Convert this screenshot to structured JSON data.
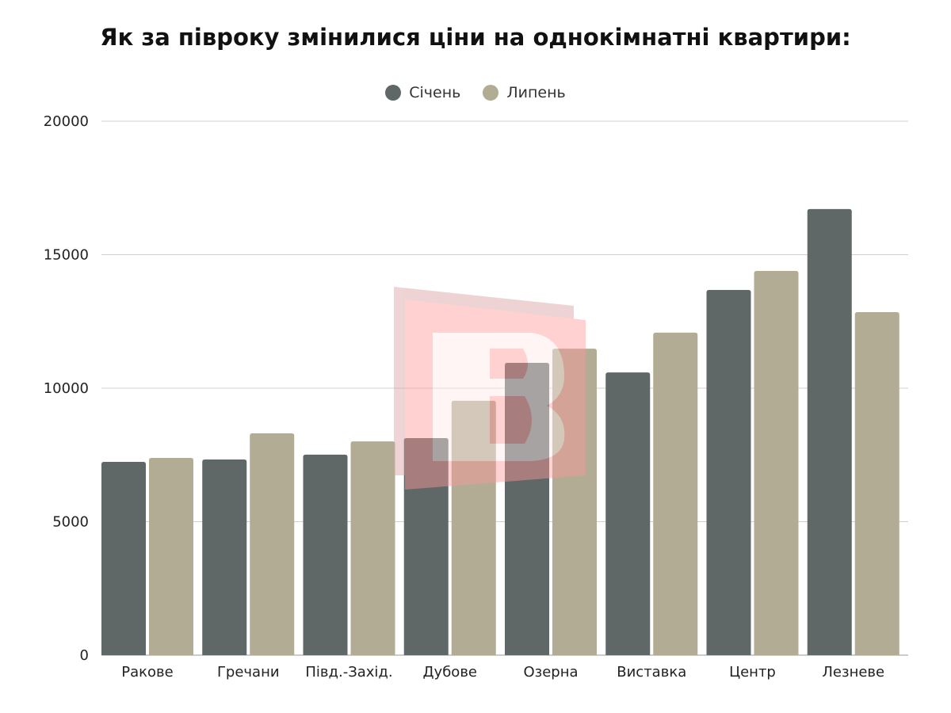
{
  "chart_data": {
    "type": "bar",
    "title": "Як за півроку змінилися ціни на однокімнатні квартири:",
    "xlabel": "",
    "ylabel": "",
    "ylim": [
      0,
      20000
    ],
    "yticks": [
      0,
      5000,
      10000,
      15000,
      20000
    ],
    "grid": true,
    "legend_position": "top-center",
    "categories": [
      "Ракове",
      "Гречани",
      "Півд.-Захід.",
      "Дубове",
      "Озерна",
      "Виставка",
      "Центр",
      "Лезневе"
    ],
    "series": [
      {
        "name": "Січень",
        "color": "#5f6866",
        "values": [
          7240,
          7330,
          7510,
          8130,
          10950,
          10590,
          13680,
          16710
        ]
      },
      {
        "name": "Липень",
        "color": "#b2ac95",
        "values": [
          7390,
          8310,
          8010,
          9530,
          11480,
          12080,
          14390,
          12850
        ]
      }
    ]
  }
}
